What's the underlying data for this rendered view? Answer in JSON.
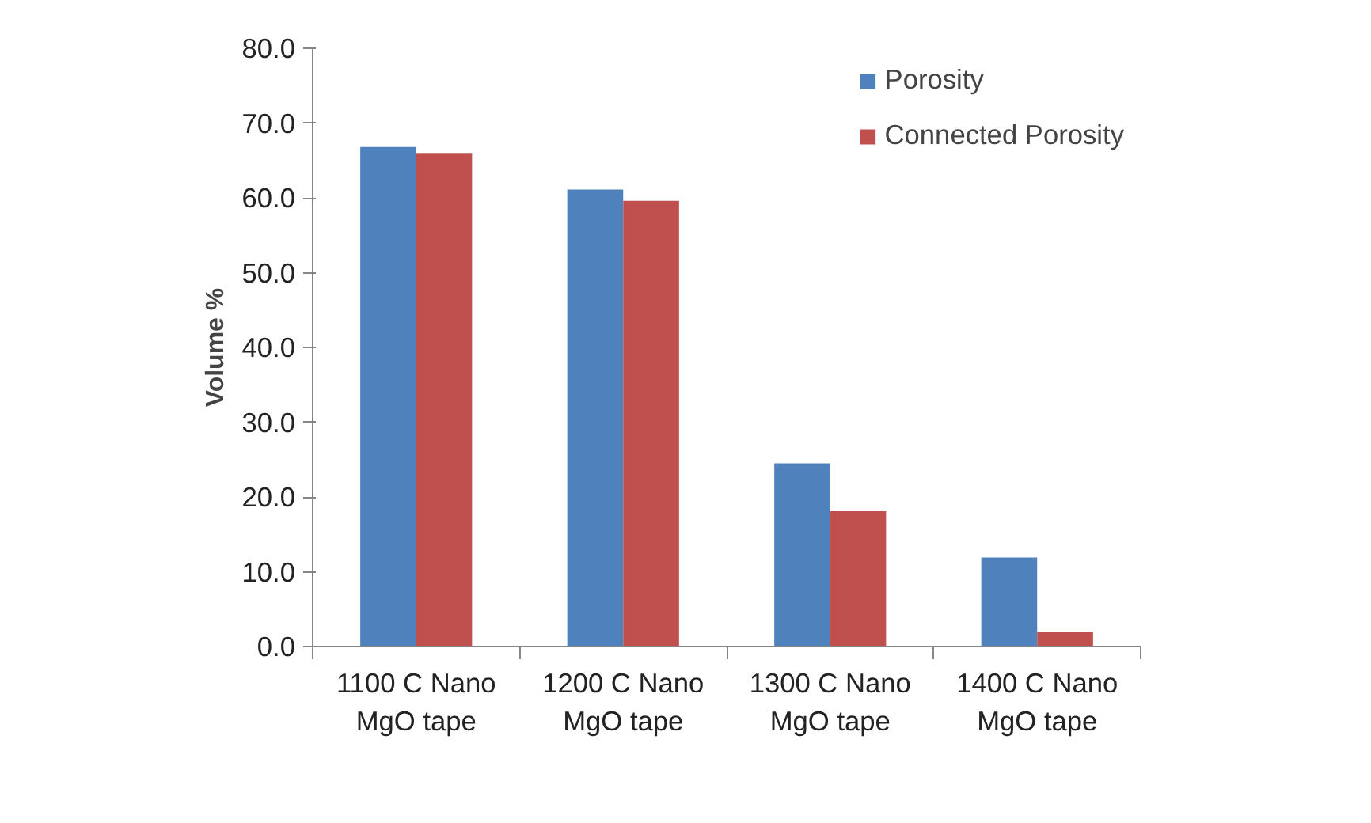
{
  "chart_data": {
    "type": "bar",
    "ylabel": "Volume %",
    "categories": [
      "1100 C Nano MgO tape",
      "1200 C Nano MgO tape",
      "1300 C Nano MgO tape",
      "1400 C Nano MgO tape"
    ],
    "series": [
      {
        "name": "Porosity",
        "color": "#4f81bd",
        "values": [
          66.8,
          61.1,
          24.5,
          11.9
        ]
      },
      {
        "name": "Connected Porosity",
        "color": "#c0504d",
        "values": [
          66.0,
          59.6,
          18.1,
          1.9
        ]
      }
    ],
    "ylim": [
      0,
      80
    ],
    "yticks": [
      {
        "value": 0,
        "label": "0.0"
      },
      {
        "value": 10,
        "label": "10.0"
      },
      {
        "value": 20,
        "label": "20.0"
      },
      {
        "value": 30,
        "label": "30.0"
      },
      {
        "value": 40,
        "label": "40.0"
      },
      {
        "value": 50,
        "label": "50.0"
      },
      {
        "value": 60,
        "label": "60.0"
      },
      {
        "value": 70,
        "label": "70.0"
      },
      {
        "value": 80,
        "label": "80.0"
      }
    ],
    "grid": false,
    "legend": "top right"
  }
}
